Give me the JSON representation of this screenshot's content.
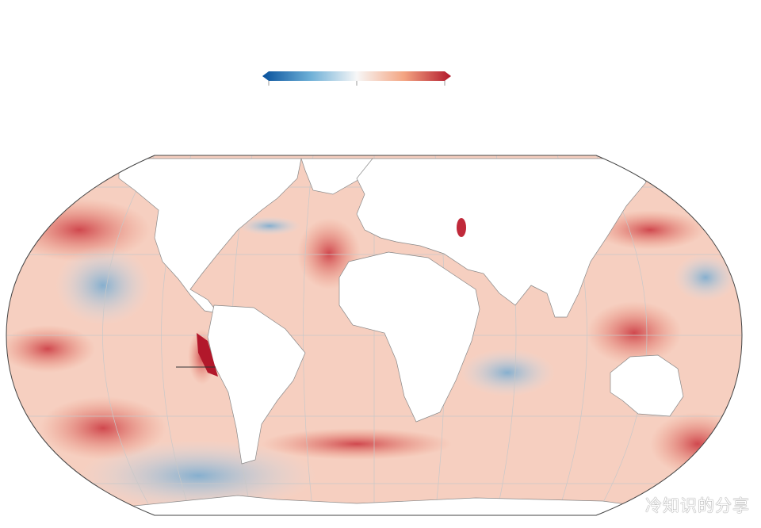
{
  "colorbar": {
    "colors": [
      "#08519c",
      "#6baed6",
      "#f7f7f7",
      "#f4a582",
      "#b2182b"
    ],
    "extend": "both",
    "ticks": 3
  },
  "map": {
    "projection": "Robinson",
    "graticule": true,
    "land_color": "#ffffff",
    "coast_color": "#888888"
  },
  "watermark": "冷知识的分享"
}
